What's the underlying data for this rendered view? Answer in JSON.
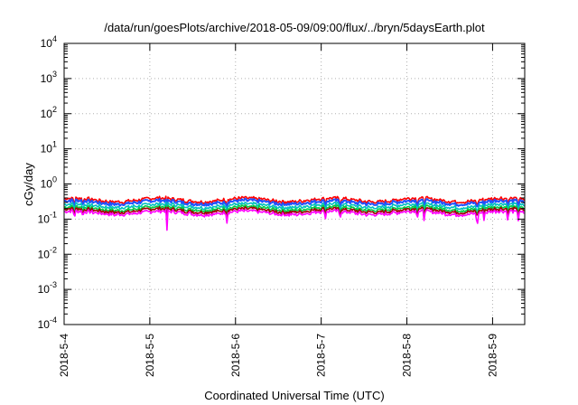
{
  "chart_data": {
    "type": "line",
    "title": "/data/run/goesPlots/archive/2018-05-09/09:00/flux/../bryn/5daysEarth.plot",
    "xlabel": "Coordinated Universal Time (UTC)",
    "ylabel": "cGy/day",
    "y_scale": "log",
    "ylim": [
      0.0001,
      10000
    ],
    "xlim": [
      0,
      5.375
    ],
    "x_unit": "days since 2018-5-4 00:00 UTC",
    "y_ticks": [
      {
        "value": 0.0001,
        "base": "10",
        "exp": "-4"
      },
      {
        "value": 0.001,
        "base": "10",
        "exp": "-3"
      },
      {
        "value": 0.01,
        "base": "10",
        "exp": "-2"
      },
      {
        "value": 0.1,
        "base": "10",
        "exp": "-1"
      },
      {
        "value": 1,
        "base": "10",
        "exp": "0"
      },
      {
        "value": 10,
        "base": "10",
        "exp": "1"
      },
      {
        "value": 100,
        "base": "10",
        "exp": "2"
      },
      {
        "value": 1000,
        "base": "10",
        "exp": "3"
      },
      {
        "value": 10000,
        "base": "10",
        "exp": "4"
      }
    ],
    "x_ticks": [
      {
        "value": 0,
        "label": "2018-5-4"
      },
      {
        "value": 1,
        "label": "2018-5-5"
      },
      {
        "value": 2,
        "label": "2018-5-6"
      },
      {
        "value": 3,
        "label": "2018-5-7"
      },
      {
        "value": 4,
        "label": "2018-5-8"
      },
      {
        "value": 5,
        "label": "2018-5-9"
      }
    ],
    "grid": true,
    "series": [
      {
        "color": "#ff0000",
        "base": 0.35
      },
      {
        "color": "#2050ff",
        "base": 0.3
      },
      {
        "color": "#00c0c0",
        "base": 0.24
      },
      {
        "color": "#00cc44",
        "base": 0.2
      },
      {
        "color": "#a00000",
        "base": 0.175
      },
      {
        "color": "#ff00ff",
        "base": 0.15
      }
    ],
    "dips": [
      {
        "x": 0.12,
        "factor": 0.55
      },
      {
        "x": 0.22,
        "factor": 0.65
      },
      {
        "x": 1.2,
        "factor": 0.3
      },
      {
        "x": 1.9,
        "factor": 0.55
      },
      {
        "x": 3.05,
        "factor": 0.6
      },
      {
        "x": 3.22,
        "factor": 0.55
      },
      {
        "x": 4.12,
        "factor": 0.6
      },
      {
        "x": 4.2,
        "factor": 0.6
      },
      {
        "x": 4.82,
        "factor": 0.12
      },
      {
        "x": 4.9,
        "factor": 0.65
      },
      {
        "x": 5.18,
        "factor": 0.35
      },
      {
        "x": 5.3,
        "factor": 0.6
      }
    ]
  }
}
